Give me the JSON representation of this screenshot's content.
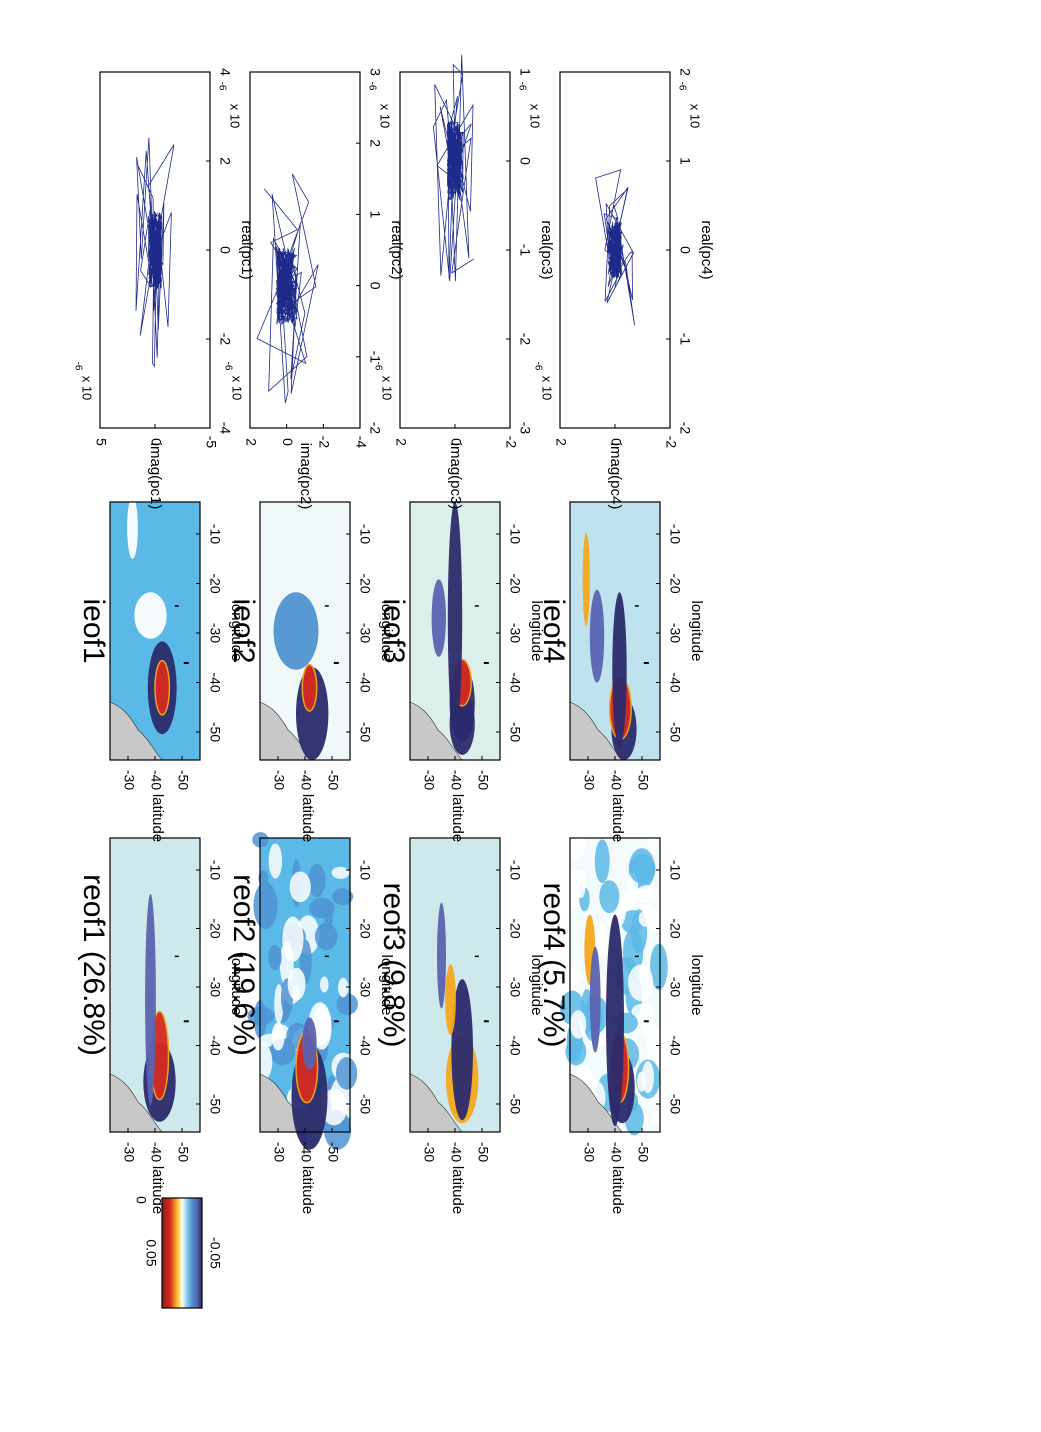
{
  "figure": {
    "orientation": "rotated-90-clockwise"
  },
  "colors": {
    "land": "#c8c8c8",
    "ocean_light": "#cde9ec",
    "blue_mid": "#5ab9e6",
    "blue_strong": "#4f93d2",
    "purple": "#5a63b0",
    "navy": "#2b2a6b",
    "orange": "#f4a81d",
    "red": "#d62a1f",
    "white_contour": "#ffffff",
    "trajectory": "#1e2a8a"
  },
  "colorbar": {
    "max_label": "0.05",
    "mid_label": "0",
    "min_label": "-0.05",
    "colors": [
      "#8b1a1a",
      "#d62a1f",
      "#f4a81d",
      "#ffe680",
      "#ffffff",
      "#cde9ec",
      "#5ab9e6",
      "#4f93d2",
      "#5a63b0",
      "#2b2a6b"
    ]
  },
  "map_axes": {
    "xlabel": "longitude",
    "ylabel": "latitude",
    "lon_ticks": [
      "-50",
      "-40",
      "-30",
      "-20",
      "-10"
    ],
    "lon_ticks_reof1": [
      "-50",
      "-40",
      "-30",
      "-20",
      "-10"
    ],
    "lat_ticks": [
      "-30",
      "-40",
      "-50"
    ]
  },
  "reof_titles": [
    "reof1 (26.8%)",
    "reof2 (19.6%)",
    "reof3 (9.8%)",
    "reof4 (5.7%)"
  ],
  "ieof_titles": [
    "ieof1",
    "ieof2",
    "ieof3",
    "ieof4"
  ],
  "explained_variance_pct": [
    26.8,
    19.6,
    9.8,
    5.7
  ],
  "chart_data": [
    {
      "type": "line",
      "xlabel": "real(pc1)",
      "ylabel": "imag(pc1)",
      "x_multiplier": "x 10",
      "x_exp": "-6",
      "y_multiplier": "x 10",
      "y_exp": "-6",
      "xlim": [
        -4,
        4
      ],
      "ylim": [
        -5,
        5
      ],
      "xticks": [
        "-4",
        "-2",
        "0",
        "2",
        "4"
      ],
      "yticks": [
        "5",
        "0",
        "-5"
      ],
      "spread": [
        3.5,
        2.5
      ]
    },
    {
      "type": "line",
      "xlabel": "real(pc2)",
      "ylabel": "imag(pc2)",
      "x_multiplier": "x 10",
      "x_exp": "-6",
      "y_multiplier": "x 10",
      "y_exp": "-6",
      "xlim": [
        -2,
        3
      ],
      "ylim": [
        -4,
        2
      ],
      "xticks": [
        "-2",
        "-1",
        "0",
        "1",
        "2",
        "3"
      ],
      "yticks": [
        "2",
        "0",
        "-2",
        "-4"
      ],
      "spread": [
        2.2,
        2.3
      ]
    },
    {
      "type": "line",
      "xlabel": "real(pc3)",
      "ylabel": "imag(pc3)",
      "x_multiplier": "x 10",
      "x_exp": "-6",
      "y_multiplier": "x 10",
      "y_exp": "-6",
      "xlim": [
        -3,
        1
      ],
      "ylim": [
        -2,
        2
      ],
      "xticks": [
        "-3",
        "-2",
        "-1",
        "0",
        "1"
      ],
      "yticks": [
        "2",
        "0",
        "-2"
      ],
      "spread": [
        1.8,
        1.2
      ]
    },
    {
      "type": "line",
      "xlabel": "real(pc4)",
      "ylabel": "imag(pc4)",
      "x_multiplier": "x 10",
      "x_exp": "-6",
      "y_multiplier": "x 10",
      "y_exp": "-6",
      "xlim": [
        -2,
        2
      ],
      "ylim": [
        -2,
        2
      ],
      "xticks": [
        "-2",
        "-1",
        "0",
        "1",
        "2"
      ],
      "yticks": [
        "2",
        "0",
        "-2"
      ],
      "spread": [
        1.3,
        1.0
      ]
    }
  ]
}
